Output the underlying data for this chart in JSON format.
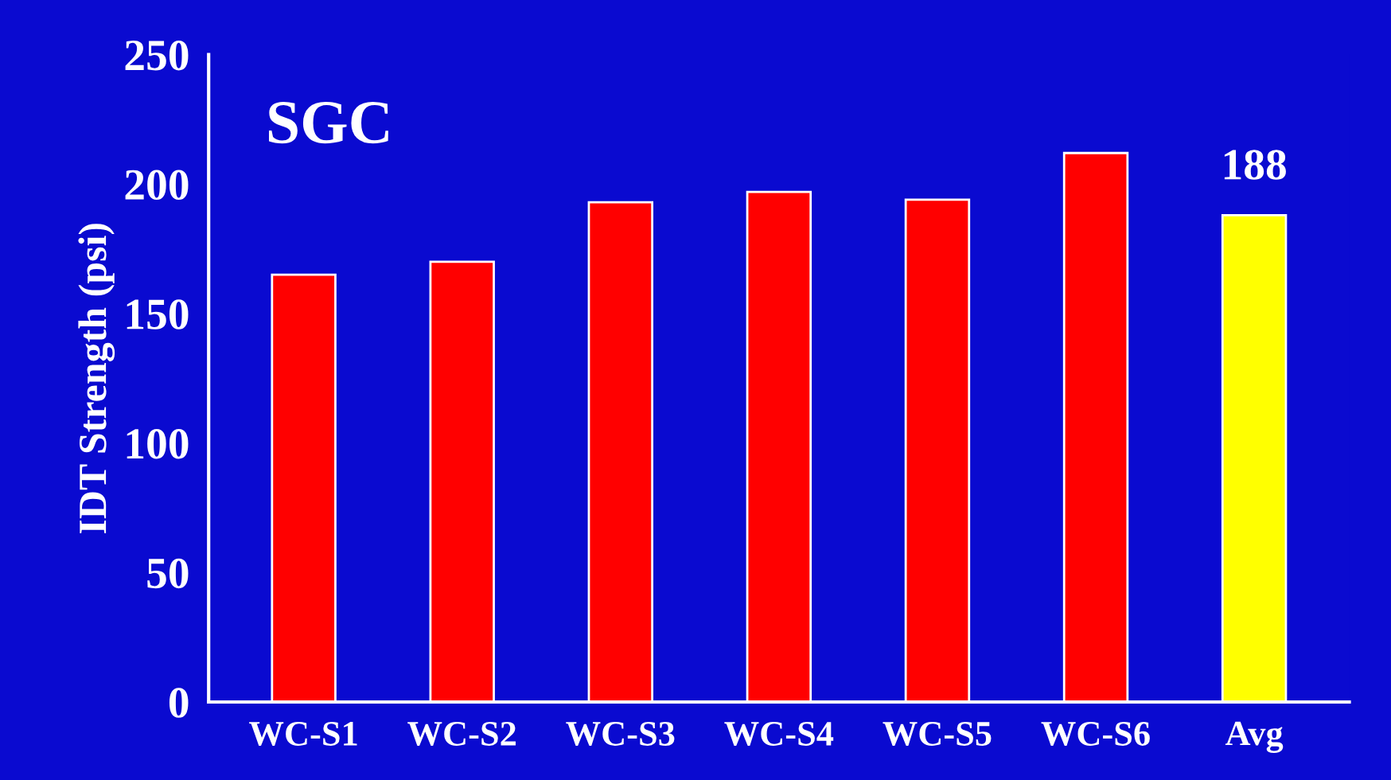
{
  "chart_data": {
    "type": "bar",
    "title": "SGC",
    "ylabel": "IDT Strength (psi)",
    "categories": [
      "WC-S1",
      "WC-S2",
      "WC-S3",
      "WC-S4",
      "WC-S5",
      "WC-S6",
      "Avg"
    ],
    "values": [
      165,
      170,
      193,
      197,
      194,
      212,
      188
    ],
    "colors": [
      "#ff0000",
      "#ff0000",
      "#ff0000",
      "#ff0000",
      "#ff0000",
      "#ff0000",
      "#ffff00"
    ],
    "value_labels": [
      null,
      null,
      null,
      null,
      null,
      null,
      "188"
    ],
    "ylim": [
      0,
      250
    ],
    "yticks": [
      0,
      50,
      100,
      150,
      200,
      250
    ],
    "grid": false,
    "legend": false
  }
}
